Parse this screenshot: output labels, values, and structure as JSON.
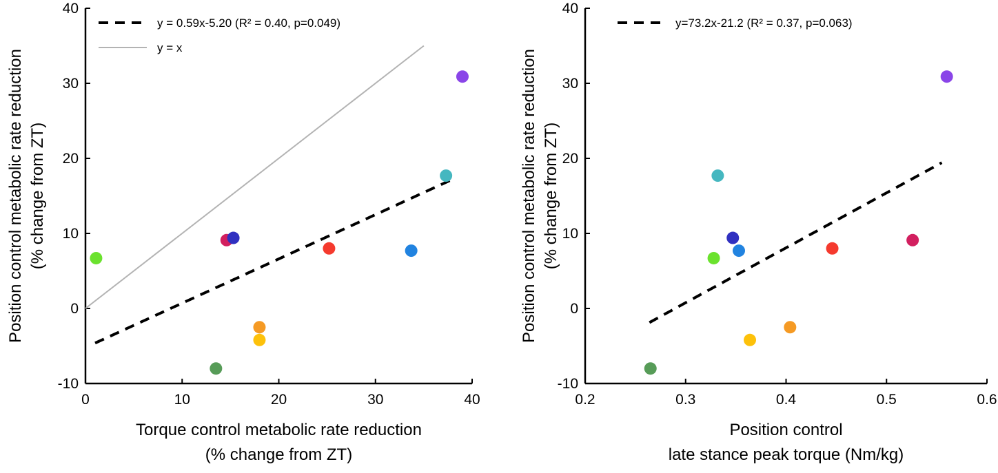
{
  "chart_data": [
    {
      "type": "scatter",
      "xlabel_lines": [
        "Torque control metabolic rate reduction",
        "(% change from ZT)"
      ],
      "ylabel_lines": [
        "Position control metabolic rate reduction",
        "(% change from ZT)"
      ],
      "xlim": [
        0,
        40
      ],
      "ylim": [
        -10,
        40
      ],
      "xticks": [
        0,
        10,
        20,
        30,
        40
      ],
      "yticks": [
        -10,
        0,
        10,
        20,
        30,
        40
      ],
      "xtick_labels": [
        "0",
        "10",
        "20",
        "30",
        "40"
      ],
      "ytick_labels": [
        "-10",
        "0",
        "10",
        "20",
        "30",
        "40"
      ],
      "grid": false,
      "legend_placement": "top-left",
      "points": [
        {
          "x": 1.1,
          "y": 6.7,
          "color": "#6be22e"
        },
        {
          "x": 14.6,
          "y": 9.1,
          "color": "#d21f5f"
        },
        {
          "x": 15.3,
          "y": 9.4,
          "color": "#3030c0"
        },
        {
          "x": 25.2,
          "y": 8.0,
          "color": "#f53a2e"
        },
        {
          "x": 33.7,
          "y": 7.7,
          "color": "#2183e0"
        },
        {
          "x": 37.3,
          "y": 17.7,
          "color": "#45b7c0"
        },
        {
          "x": 39.0,
          "y": 30.9,
          "color": "#8a45e8"
        },
        {
          "x": 18.0,
          "y": -2.5,
          "color": "#f59a24"
        },
        {
          "x": 18.0,
          "y": -4.2,
          "color": "#fdc10a"
        },
        {
          "x": 13.5,
          "y": -8.0,
          "color": "#579c58"
        }
      ],
      "lines": [
        {
          "name": "y = 0.59x-5.20 (R² = 0.40, p=0.049)",
          "style": "dashed",
          "color": "#000000",
          "slope": 0.59,
          "intercept": -5.2,
          "x_range": [
            1.0,
            38.0
          ]
        },
        {
          "name": "y = x",
          "style": "solid",
          "color": "#b3b3b3",
          "slope": 1,
          "intercept": 0,
          "x_range": [
            0,
            35
          ]
        }
      ]
    },
    {
      "type": "scatter",
      "xlabel_lines": [
        "Position control",
        "late stance peak torque (Nm/kg)"
      ],
      "ylabel_lines": [
        "Position control metabolic rate reduction",
        "(% change from ZT)"
      ],
      "xlim": [
        0.2,
        0.6
      ],
      "ylim": [
        -10,
        40
      ],
      "xticks": [
        0.2,
        0.3,
        0.4,
        0.5,
        0.6
      ],
      "yticks": [
        -10,
        0,
        10,
        20,
        30,
        40
      ],
      "xtick_labels": [
        "0.2",
        "0.3",
        "0.4",
        "0.5",
        "0.6"
      ],
      "ytick_labels": [
        "-10",
        "0",
        "10",
        "20",
        "30",
        "40"
      ],
      "grid": false,
      "legend_placement": "top-left",
      "points": [
        {
          "x": 0.328,
          "y": 6.7,
          "color": "#6be22e"
        },
        {
          "x": 0.526,
          "y": 9.1,
          "color": "#d21f5f"
        },
        {
          "x": 0.347,
          "y": 9.4,
          "color": "#3030c0"
        },
        {
          "x": 0.446,
          "y": 8.0,
          "color": "#f53a2e"
        },
        {
          "x": 0.353,
          "y": 7.7,
          "color": "#2183e0"
        },
        {
          "x": 0.332,
          "y": 17.7,
          "color": "#45b7c0"
        },
        {
          "x": 0.56,
          "y": 30.9,
          "color": "#8a45e8"
        },
        {
          "x": 0.404,
          "y": -2.5,
          "color": "#f59a24"
        },
        {
          "x": 0.364,
          "y": -4.2,
          "color": "#fdc10a"
        },
        {
          "x": 0.265,
          "y": -8.0,
          "color": "#579c58"
        }
      ],
      "lines": [
        {
          "name": "y=73.2x-21.2 (R² = 0.37, p=0.063)",
          "style": "dashed",
          "color": "#000000",
          "slope": 73.2,
          "intercept": -21.2,
          "x_range": [
            0.264,
            0.555
          ]
        }
      ]
    }
  ]
}
